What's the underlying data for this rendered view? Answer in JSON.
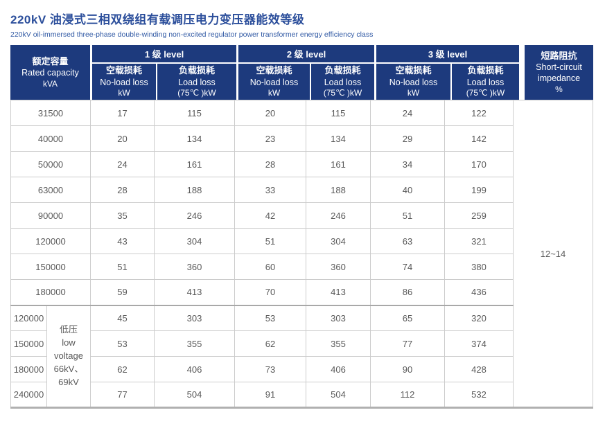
{
  "page": {
    "title": "220kV 油浸式三相双绕组有载调压电力变压器能效等级",
    "subtitle": "220kV oil-immersed three-phase double-winding non-excited regulator power transformer energy efficiency class"
  },
  "colors": {
    "header_bg": "#1d3a7d",
    "title_text": "#2b4e9b",
    "body_text": "#595959",
    "grid_line": "#cccccc"
  },
  "table": {
    "capacity_header": {
      "line1": "额定容量",
      "line2": "Rated capacity",
      "line3": "kVA"
    },
    "groups": [
      {
        "label": "1 级 level"
      },
      {
        "label": "2 级 level"
      },
      {
        "label": "3 级 level"
      }
    ],
    "no_load_header": {
      "line1": "空载损耗",
      "line2": "No-load loss",
      "line3": "kW"
    },
    "load_header": {
      "line1": "负载损耗",
      "line2": "Load loss",
      "line3": "(75℃ )kW"
    },
    "impedance_header": {
      "line1": "短路阻抗",
      "line2": "Short-circuit",
      "line3": "impedance",
      "line4": "%"
    },
    "impedance_value": "12~14",
    "low_voltage_lines": [
      "低压",
      "low",
      "voltage",
      "66kV、",
      "69kV"
    ],
    "rows_main": [
      {
        "capacity": "31500",
        "values": [
          17,
          115,
          20,
          115,
          24,
          122
        ]
      },
      {
        "capacity": "40000",
        "values": [
          20,
          134,
          23,
          134,
          29,
          142
        ]
      },
      {
        "capacity": "50000",
        "values": [
          24,
          161,
          28,
          161,
          34,
          170
        ]
      },
      {
        "capacity": "63000",
        "values": [
          28,
          188,
          33,
          188,
          40,
          199
        ]
      },
      {
        "capacity": "90000",
        "values": [
          35,
          246,
          42,
          246,
          51,
          259
        ]
      },
      {
        "capacity": "120000",
        "values": [
          43,
          304,
          51,
          304,
          63,
          321
        ]
      },
      {
        "capacity": "150000",
        "values": [
          51,
          360,
          60,
          360,
          74,
          380
        ]
      },
      {
        "capacity": "180000",
        "values": [
          59,
          413,
          70,
          413,
          86,
          436
        ]
      }
    ],
    "rows_low_voltage": [
      {
        "capacity": "120000",
        "values": [
          45,
          303,
          53,
          303,
          65,
          320
        ]
      },
      {
        "capacity": "150000",
        "values": [
          53,
          355,
          62,
          355,
          77,
          374
        ]
      },
      {
        "capacity": "180000",
        "values": [
          62,
          406,
          73,
          406,
          90,
          428
        ]
      },
      {
        "capacity": "240000",
        "values": [
          77,
          504,
          91,
          504,
          112,
          532
        ]
      }
    ]
  }
}
